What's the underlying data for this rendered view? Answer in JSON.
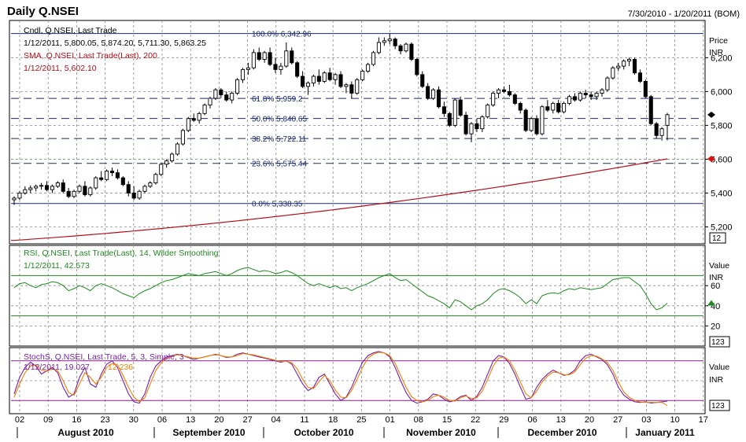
{
  "header": {
    "title": "Daily Q.NSEI",
    "date_range": "7/30/2010 - 1/20/2011 (BOM)"
  },
  "colors": {
    "frame": "#000000",
    "grid": "#8a8a8a",
    "candle": "#000000",
    "sma": "#b0101a",
    "fib": "#1a2a6e",
    "rsi": "#1e8a1e",
    "rsi_bands": "#1e8a1e",
    "stoch_k": "#7a1fa2",
    "stoch_d": "#f08000",
    "stoch_bands": "#8a1a8a",
    "marker_close": "#000000",
    "marker_sma": "#e01010",
    "marker_rsi": "#1e8a1e"
  },
  "price_panel": {
    "legend_line1": "Cndl, Q.NSEI, Last Trade",
    "legend_line2": "1/12/2011, 5,800.05, 5,874.20, 5,711.30, 5,863.25",
    "sma_line1": "SMA, Q.NSEI, Last Trade(Last), 200",
    "sma_line2": "1/12/2011, 5,602.10",
    "axis_title": "Price",
    "axis_unit": "INR",
    "scale_box": "12",
    "fib_labels": [
      "100.0%  6,342.96",
      "61.8%   5,959.2",
      "50.0%   5,840.65",
      "38.2%   5,722.11",
      "23.6%   5,575.44",
      "0.0%    5,338.35"
    ]
  },
  "rsi_panel": {
    "legend_line1": "RSI, Q.NSEI, Last Trade(Last), 14, Wilder Smoothing",
    "legend_line2": "1/12/2011, 42.573",
    "axis_title": "Value",
    "axis_unit": "INR",
    "scale_box": "123"
  },
  "stoch_panel": {
    "legend_line1": "StochS, Q.NSEI, Last Trade, 5, 3, Simple, 3",
    "legend_line2_a": "1/12/2011, 19.027,",
    "legend_line2_b": "12.236",
    "axis_title": "Value",
    "axis_unit": "INR",
    "scale_box": "123"
  },
  "chart_data": [
    {
      "type": "candlestick",
      "title": "Daily Q.NSEI",
      "x_day_labels": [
        "02",
        "09",
        "16",
        "23",
        "30",
        "06",
        "13",
        "20",
        "27",
        "04",
        "11",
        "18",
        "25",
        "01",
        "08",
        "15",
        "22",
        "29",
        "06",
        "13",
        "20",
        "27",
        "03",
        "10",
        "17"
      ],
      "x_month_labels": [
        "August 2010",
        "September 2010",
        "October 2010",
        "November 2010",
        "December 2010",
        "January 2011"
      ],
      "ylim": [
        5100,
        6420
      ],
      "y_ticks": [
        5200,
        5400,
        5600,
        5800,
        6000,
        6200
      ],
      "y_tick_labels": [
        "5,200",
        "5,400",
        "5,600",
        "5,800",
        "6,000",
        "6,200"
      ],
      "fibonacci_levels": [
        {
          "pct": "100.0%",
          "value": 6342.96
        },
        {
          "pct": "61.8%",
          "value": 5959.2
        },
        {
          "pct": "50.0%",
          "value": 5840.65
        },
        {
          "pct": "38.2%",
          "value": 5722.11
        },
        {
          "pct": "23.6%",
          "value": 5575.44
        },
        {
          "pct": "0.0%",
          "value": 5338.35
        }
      ],
      "candles_ohlc": [
        [
          5360,
          5380,
          5330,
          5370
        ],
        [
          5370,
          5410,
          5360,
          5400
        ],
        [
          5400,
          5440,
          5390,
          5420
        ],
        [
          5420,
          5445,
          5400,
          5430
        ],
        [
          5430,
          5450,
          5410,
          5440
        ],
        [
          5440,
          5460,
          5420,
          5445
        ],
        [
          5445,
          5470,
          5410,
          5420
        ],
        [
          5420,
          5450,
          5400,
          5440
        ],
        [
          5440,
          5470,
          5430,
          5460
        ],
        [
          5460,
          5480,
          5400,
          5410
        ],
        [
          5410,
          5430,
          5370,
          5380
        ],
        [
          5380,
          5420,
          5370,
          5410
        ],
        [
          5410,
          5450,
          5400,
          5440
        ],
        [
          5440,
          5470,
          5380,
          5390
        ],
        [
          5390,
          5440,
          5380,
          5430
        ],
        [
          5430,
          5500,
          5420,
          5490
        ],
        [
          5490,
          5530,
          5470,
          5480
        ],
        [
          5480,
          5540,
          5470,
          5530
        ],
        [
          5530,
          5550,
          5500,
          5520
        ],
        [
          5520,
          5540,
          5480,
          5490
        ],
        [
          5490,
          5500,
          5440,
          5450
        ],
        [
          5450,
          5470,
          5380,
          5400
        ],
        [
          5400,
          5440,
          5360,
          5370
        ],
        [
          5370,
          5420,
          5360,
          5410
        ],
        [
          5410,
          5450,
          5400,
          5440
        ],
        [
          5440,
          5470,
          5430,
          5460
        ],
        [
          5460,
          5520,
          5450,
          5510
        ],
        [
          5510,
          5580,
          5500,
          5570
        ],
        [
          5570,
          5600,
          5550,
          5590
        ],
        [
          5590,
          5640,
          5580,
          5630
        ],
        [
          5630,
          5700,
          5620,
          5690
        ],
        [
          5690,
          5780,
          5680,
          5770
        ],
        [
          5770,
          5850,
          5760,
          5840
        ],
        [
          5840,
          5870,
          5820,
          5830
        ],
        [
          5830,
          5880,
          5810,
          5870
        ],
        [
          5870,
          5930,
          5860,
          5920
        ],
        [
          5920,
          5970,
          5900,
          5960
        ],
        [
          5960,
          6020,
          5950,
          6010
        ],
        [
          6010,
          6020,
          5960,
          5980
        ],
        [
          5980,
          6000,
          5940,
          5950
        ],
        [
          5950,
          6000,
          5930,
          5990
        ],
        [
          5990,
          6080,
          5980,
          6070
        ],
        [
          6070,
          6140,
          6050,
          6130
        ],
        [
          6130,
          6170,
          6100,
          6140
        ],
        [
          6140,
          6250,
          6130,
          6230
        ],
        [
          6230,
          6260,
          6180,
          6190
        ],
        [
          6190,
          6240,
          6170,
          6230
        ],
        [
          6230,
          6260,
          6150,
          6160
        ],
        [
          6160,
          6200,
          6110,
          6130
        ],
        [
          6130,
          6170,
          6100,
          6150
        ],
        [
          6150,
          6290,
          6140,
          6240
        ],
        [
          6240,
          6260,
          6160,
          6170
        ],
        [
          6170,
          6180,
          6080,
          6090
        ],
        [
          6090,
          6120,
          6020,
          6030
        ],
        [
          6030,
          6060,
          5980,
          6050
        ],
        [
          6050,
          6100,
          6030,
          6090
        ],
        [
          6090,
          6130,
          6040,
          6060
        ],
        [
          6060,
          6120,
          6050,
          6110
        ],
        [
          6110,
          6140,
          6060,
          6070
        ],
        [
          6070,
          6110,
          6040,
          6100
        ],
        [
          6100,
          6120,
          6020,
          6030
        ],
        [
          6030,
          6050,
          5990,
          6040
        ],
        [
          6040,
          6060,
          5960,
          5990
        ],
        [
          5990,
          6080,
          5980,
          6070
        ],
        [
          6070,
          6130,
          6060,
          6120
        ],
        [
          6120,
          6170,
          6110,
          6160
        ],
        [
          6160,
          6240,
          6150,
          6230
        ],
        [
          6230,
          6320,
          6220,
          6290
        ],
        [
          6290,
          6320,
          6270,
          6300
        ],
        [
          6300,
          6343,
          6280,
          6310
        ],
        [
          6310,
          6320,
          6250,
          6270
        ],
        [
          6270,
          6280,
          6220,
          6240
        ],
        [
          6240,
          6290,
          6230,
          6280
        ],
        [
          6280,
          6290,
          6180,
          6190
        ],
        [
          6190,
          6200,
          6090,
          6100
        ],
        [
          6100,
          6120,
          6020,
          6030
        ],
        [
          6030,
          6050,
          5950,
          5960
        ],
        [
          5960,
          6020,
          5950,
          6010
        ],
        [
          6010,
          6030,
          5900,
          5910
        ],
        [
          5910,
          5940,
          5850,
          5870
        ],
        [
          5870,
          5880,
          5790,
          5800
        ],
        [
          5800,
          5960,
          5790,
          5950
        ],
        [
          5950,
          5970,
          5850,
          5860
        ],
        [
          5860,
          5880,
          5740,
          5750
        ],
        [
          5750,
          5820,
          5700,
          5810
        ],
        [
          5810,
          5840,
          5760,
          5780
        ],
        [
          5780,
          5860,
          5760,
          5850
        ],
        [
          5850,
          5930,
          5840,
          5920
        ],
        [
          5920,
          6000,
          5910,
          5990
        ],
        [
          5990,
          6020,
          5960,
          6010
        ],
        [
          6010,
          6030,
          5990,
          6000
        ],
        [
          6000,
          6040,
          5970,
          5980
        ],
        [
          5980,
          5990,
          5920,
          5930
        ],
        [
          5930,
          5940,
          5870,
          5890
        ],
        [
          5890,
          5900,
          5760,
          5770
        ],
        [
          5770,
          5850,
          5760,
          5840
        ],
        [
          5840,
          5860,
          5740,
          5750
        ],
        [
          5750,
          5920,
          5740,
          5910
        ],
        [
          5910,
          5950,
          5880,
          5890
        ],
        [
          5890,
          5940,
          5870,
          5930
        ],
        [
          5930,
          5950,
          5870,
          5880
        ],
        [
          5880,
          5940,
          5870,
          5930
        ],
        [
          5930,
          5980,
          5920,
          5970
        ],
        [
          5970,
          5990,
          5940,
          5950
        ],
        [
          5950,
          6000,
          5940,
          5990
        ],
        [
          5990,
          6010,
          5960,
          5980
        ],
        [
          5980,
          6000,
          5950,
          5970
        ],
        [
          5970,
          6000,
          5950,
          5990
        ],
        [
          5990,
          6020,
          5970,
          6010
        ],
        [
          6010,
          6090,
          6000,
          6080
        ],
        [
          6080,
          6150,
          6070,
          6140
        ],
        [
          6140,
          6170,
          6120,
          6150
        ],
        [
          6150,
          6190,
          6130,
          6180
        ],
        [
          6180,
          6200,
          6150,
          6190
        ],
        [
          6190,
          6200,
          6100,
          6110
        ],
        [
          6110,
          6130,
          6050,
          6060
        ],
        [
          6060,
          6070,
          5960,
          5970
        ],
        [
          5970,
          5980,
          5800,
          5810
        ],
        [
          5810,
          5820,
          5720,
          5740
        ],
        [
          5740,
          5790,
          5710,
          5780
        ],
        [
          5800,
          5874,
          5711,
          5863
        ]
      ],
      "sma_200_start": 5120,
      "sma_200_end": 5602.1,
      "sma_200_last": {
        "date": "1/12/2011",
        "value": 5602.1
      }
    },
    {
      "type": "line",
      "title": "RSI, Q.NSEI, Last Trade(Last), 14, Wilder Smoothing",
      "ylim": [
        0,
        100
      ],
      "y_ticks": [
        20,
        40,
        60
      ],
      "y_tick_labels": [
        "20",
        "40",
        "60"
      ],
      "bands": [
        30,
        70
      ],
      "series": [
        {
          "name": "RSI",
          "values": [
            58,
            62,
            63,
            60,
            58,
            61,
            62,
            64,
            63,
            60,
            55,
            57,
            60,
            58,
            55,
            60,
            62,
            60,
            58,
            55,
            52,
            50,
            48,
            52,
            55,
            57,
            60,
            63,
            65,
            66,
            68,
            70,
            72,
            71,
            70,
            72,
            73,
            74,
            72,
            70,
            72,
            75,
            77,
            78,
            76,
            74,
            75,
            74,
            72,
            73,
            75,
            73,
            70,
            66,
            62,
            60,
            62,
            60,
            58,
            60,
            57,
            58,
            55,
            58,
            60,
            62,
            65,
            68,
            70,
            72,
            68,
            65,
            66,
            62,
            58,
            54,
            50,
            48,
            45,
            42,
            38,
            46,
            44,
            40,
            36,
            40,
            42,
            46,
            52,
            56,
            57,
            55,
            52,
            48,
            42,
            46,
            42,
            50,
            52,
            53,
            52,
            55,
            57,
            56,
            58,
            57,
            56,
            57,
            58,
            62,
            66,
            67,
            68,
            68,
            64,
            60,
            52,
            42,
            36,
            38,
            42.573
          ]
        }
      ],
      "last": {
        "date": "1/12/2011",
        "value": 42.573
      }
    },
    {
      "type": "line",
      "title": "StochS, Q.NSEI, Last Trade, 5, 3, Simple, 3",
      "ylim": [
        0,
        100
      ],
      "bands": [
        20,
        80
      ],
      "series": [
        {
          "name": "%K",
          "values": [
            30,
            55,
            70,
            78,
            72,
            60,
            65,
            70,
            62,
            40,
            25,
            30,
            55,
            70,
            45,
            40,
            60,
            75,
            80,
            70,
            50,
            30,
            18,
            16,
            30,
            55,
            72,
            80,
            86,
            88,
            90,
            88,
            85,
            82,
            84,
            86,
            88,
            90,
            88,
            85,
            86,
            90,
            92,
            90,
            88,
            86,
            84,
            82,
            80,
            78,
            80,
            75,
            60,
            45,
            35,
            40,
            55,
            60,
            45,
            30,
            20,
            25,
            40,
            60,
            78,
            88,
            92,
            94,
            92,
            86,
            70,
            50,
            32,
            20,
            16,
            18,
            22,
            30,
            28,
            22,
            18,
            20,
            26,
            28,
            20,
            26,
            40,
            60,
            80,
            88,
            86,
            76,
            60,
            40,
            22,
            24,
            40,
            52,
            60,
            66,
            62,
            58,
            60,
            66,
            80,
            88,
            90,
            86,
            82,
            74,
            60,
            40,
            28,
            22,
            18,
            17,
            18,
            16,
            17,
            18,
            19.027
          ]
        },
        {
          "name": "%D",
          "values": [
            25,
            45,
            62,
            72,
            74,
            66,
            64,
            68,
            65,
            50,
            32,
            28,
            45,
            62,
            55,
            45,
            55,
            70,
            76,
            74,
            58,
            40,
            25,
            18,
            24,
            45,
            65,
            77,
            84,
            87,
            89,
            88,
            86,
            84,
            84,
            86,
            88,
            89,
            88,
            86,
            86,
            88,
            91,
            90,
            89,
            87,
            85,
            83,
            81,
            79,
            79,
            77,
            68,
            52,
            40,
            38,
            48,
            58,
            50,
            36,
            25,
            24,
            35,
            52,
            70,
            84,
            90,
            93,
            92,
            88,
            76,
            58,
            40,
            26,
            20,
            18,
            20,
            26,
            28,
            25,
            20,
            19,
            24,
            27,
            23,
            24,
            34,
            52,
            72,
            84,
            86,
            80,
            66,
            48,
            30,
            24,
            34,
            48,
            57,
            63,
            62,
            59,
            59,
            63,
            74,
            84,
            88,
            87,
            83,
            77,
            66,
            48,
            33,
            25,
            20,
            18,
            17,
            17,
            17,
            17,
            12.236
          ]
        }
      ],
      "last": {
        "date": "1/12/2011",
        "k": 19.027,
        "d": 12.236
      }
    }
  ]
}
